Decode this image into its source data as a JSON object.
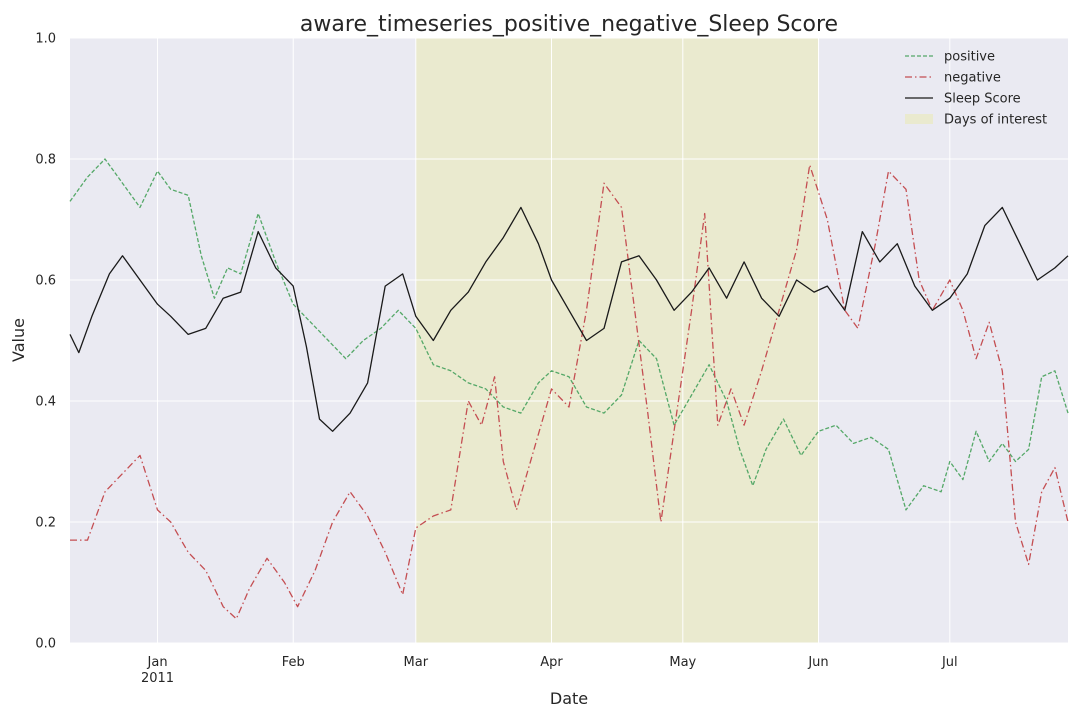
{
  "chart_data": {
    "type": "line",
    "title": "aware_timeseries_positive_negative_Sleep Score",
    "xlabel": "Date",
    "ylabel": "Value",
    "xlim": [
      "2010-12-12",
      "2011-07-28"
    ],
    "ylim": [
      0,
      1
    ],
    "y_ticks": [
      "0.0",
      "0.2",
      "0.4",
      "0.6",
      "0.8",
      "1.0"
    ],
    "x_ticks": [
      {
        "date": "2011-01-01",
        "label": "Jan",
        "sublabel": "2011"
      },
      {
        "date": "2011-02-01",
        "label": "Feb",
        "sublabel": ""
      },
      {
        "date": "2011-03-01",
        "label": "Mar",
        "sublabel": ""
      },
      {
        "date": "2011-04-01",
        "label": "Apr",
        "sublabel": ""
      },
      {
        "date": "2011-05-01",
        "label": "May",
        "sublabel": ""
      },
      {
        "date": "2011-06-01",
        "label": "Jun",
        "sublabel": ""
      },
      {
        "date": "2011-07-01",
        "label": "Jul",
        "sublabel": ""
      }
    ],
    "grid": true,
    "background_color": "#eaeaf2",
    "legend_position": "top-right",
    "shaded_regions": [
      {
        "name": "Days of interest",
        "start": "2011-03-01",
        "end": "2011-06-01",
        "color": "#eaeacf"
      }
    ],
    "series": [
      {
        "name": "positive",
        "color": "#55a868",
        "style": "dashed",
        "points": [
          [
            "2010-12-12",
            0.73
          ],
          [
            "2010-12-16",
            0.77
          ],
          [
            "2010-12-20",
            0.8
          ],
          [
            "2010-12-24",
            0.76
          ],
          [
            "2010-12-28",
            0.72
          ],
          [
            "2011-01-01",
            0.78
          ],
          [
            "2011-01-04",
            0.75
          ],
          [
            "2011-01-08",
            0.74
          ],
          [
            "2011-01-11",
            0.64
          ],
          [
            "2011-01-14",
            0.57
          ],
          [
            "2011-01-17",
            0.62
          ],
          [
            "2011-01-20",
            0.61
          ],
          [
            "2011-01-24",
            0.71
          ],
          [
            "2011-01-28",
            0.63
          ],
          [
            "2011-02-01",
            0.56
          ],
          [
            "2011-02-05",
            0.53
          ],
          [
            "2011-02-09",
            0.5
          ],
          [
            "2011-02-13",
            0.47
          ],
          [
            "2011-02-17",
            0.5
          ],
          [
            "2011-02-21",
            0.52
          ],
          [
            "2011-02-25",
            0.55
          ],
          [
            "2011-03-01",
            0.52
          ],
          [
            "2011-03-05",
            0.46
          ],
          [
            "2011-03-09",
            0.45
          ],
          [
            "2011-03-13",
            0.43
          ],
          [
            "2011-03-17",
            0.42
          ],
          [
            "2011-03-21",
            0.39
          ],
          [
            "2011-03-25",
            0.38
          ],
          [
            "2011-03-29",
            0.43
          ],
          [
            "2011-04-01",
            0.45
          ],
          [
            "2011-04-05",
            0.44
          ],
          [
            "2011-04-09",
            0.39
          ],
          [
            "2011-04-13",
            0.38
          ],
          [
            "2011-04-17",
            0.41
          ],
          [
            "2011-04-21",
            0.5
          ],
          [
            "2011-04-25",
            0.47
          ],
          [
            "2011-04-29",
            0.36
          ],
          [
            "2011-05-03",
            0.41
          ],
          [
            "2011-05-07",
            0.46
          ],
          [
            "2011-05-11",
            0.4
          ],
          [
            "2011-05-14",
            0.32
          ],
          [
            "2011-05-17",
            0.26
          ],
          [
            "2011-05-20",
            0.32
          ],
          [
            "2011-05-24",
            0.37
          ],
          [
            "2011-05-28",
            0.31
          ],
          [
            "2011-06-01",
            0.35
          ],
          [
            "2011-06-05",
            0.36
          ],
          [
            "2011-06-09",
            0.33
          ],
          [
            "2011-06-13",
            0.34
          ],
          [
            "2011-06-17",
            0.32
          ],
          [
            "2011-06-21",
            0.22
          ],
          [
            "2011-06-25",
            0.26
          ],
          [
            "2011-06-29",
            0.25
          ],
          [
            "2011-07-01",
            0.3
          ],
          [
            "2011-07-04",
            0.27
          ],
          [
            "2011-07-07",
            0.35
          ],
          [
            "2011-07-10",
            0.3
          ],
          [
            "2011-07-13",
            0.33
          ],
          [
            "2011-07-16",
            0.3
          ],
          [
            "2011-07-19",
            0.32
          ],
          [
            "2011-07-22",
            0.44
          ],
          [
            "2011-07-25",
            0.45
          ],
          [
            "2011-07-28",
            0.38
          ]
        ]
      },
      {
        "name": "negative",
        "color": "#c44e52",
        "style": "dashdot",
        "points": [
          [
            "2010-12-12",
            0.17
          ],
          [
            "2010-12-16",
            0.17
          ],
          [
            "2010-12-20",
            0.25
          ],
          [
            "2010-12-24",
            0.28
          ],
          [
            "2010-12-28",
            0.31
          ],
          [
            "2011-01-01",
            0.22
          ],
          [
            "2011-01-04",
            0.2
          ],
          [
            "2011-01-08",
            0.15
          ],
          [
            "2011-01-12",
            0.12
          ],
          [
            "2011-01-16",
            0.06
          ],
          [
            "2011-01-19",
            0.04
          ],
          [
            "2011-01-22",
            0.09
          ],
          [
            "2011-01-26",
            0.14
          ],
          [
            "2011-01-30",
            0.1
          ],
          [
            "2011-02-02",
            0.06
          ],
          [
            "2011-02-06",
            0.12
          ],
          [
            "2011-02-10",
            0.2
          ],
          [
            "2011-02-14",
            0.25
          ],
          [
            "2011-02-18",
            0.21
          ],
          [
            "2011-02-22",
            0.15
          ],
          [
            "2011-02-26",
            0.08
          ],
          [
            "2011-03-01",
            0.19
          ],
          [
            "2011-03-05",
            0.21
          ],
          [
            "2011-03-09",
            0.22
          ],
          [
            "2011-03-13",
            0.4
          ],
          [
            "2011-03-16",
            0.36
          ],
          [
            "2011-03-19",
            0.44
          ],
          [
            "2011-03-21",
            0.3
          ],
          [
            "2011-03-24",
            0.22
          ],
          [
            "2011-03-28",
            0.32
          ],
          [
            "2011-04-01",
            0.42
          ],
          [
            "2011-04-05",
            0.39
          ],
          [
            "2011-04-09",
            0.55
          ],
          [
            "2011-04-13",
            0.76
          ],
          [
            "2011-04-17",
            0.72
          ],
          [
            "2011-04-20",
            0.55
          ],
          [
            "2011-04-23",
            0.38
          ],
          [
            "2011-04-26",
            0.2
          ],
          [
            "2011-04-30",
            0.4
          ],
          [
            "2011-05-03",
            0.55
          ],
          [
            "2011-05-06",
            0.71
          ],
          [
            "2011-05-09",
            0.36
          ],
          [
            "2011-05-12",
            0.42
          ],
          [
            "2011-05-15",
            0.36
          ],
          [
            "2011-05-19",
            0.45
          ],
          [
            "2011-05-23",
            0.55
          ],
          [
            "2011-05-27",
            0.65
          ],
          [
            "2011-05-30",
            0.79
          ],
          [
            "2011-06-03",
            0.7
          ],
          [
            "2011-06-07",
            0.55
          ],
          [
            "2011-06-10",
            0.52
          ],
          [
            "2011-06-14",
            0.66
          ],
          [
            "2011-06-17",
            0.78
          ],
          [
            "2011-06-21",
            0.75
          ],
          [
            "2011-06-24",
            0.6
          ],
          [
            "2011-06-27",
            0.55
          ],
          [
            "2011-07-01",
            0.6
          ],
          [
            "2011-07-04",
            0.55
          ],
          [
            "2011-07-07",
            0.47
          ],
          [
            "2011-07-10",
            0.53
          ],
          [
            "2011-07-13",
            0.45
          ],
          [
            "2011-07-16",
            0.2
          ],
          [
            "2011-07-19",
            0.13
          ],
          [
            "2011-07-22",
            0.25
          ],
          [
            "2011-07-25",
            0.29
          ],
          [
            "2011-07-28",
            0.2
          ]
        ]
      },
      {
        "name": "Sleep Score",
        "color": "#1a1a1a",
        "style": "solid",
        "points": [
          [
            "2010-12-12",
            0.51
          ],
          [
            "2010-12-14",
            0.48
          ],
          [
            "2010-12-17",
            0.54
          ],
          [
            "2010-12-21",
            0.61
          ],
          [
            "2010-12-24",
            0.64
          ],
          [
            "2010-12-28",
            0.6
          ],
          [
            "2011-01-01",
            0.56
          ],
          [
            "2011-01-04",
            0.54
          ],
          [
            "2011-01-08",
            0.51
          ],
          [
            "2011-01-12",
            0.52
          ],
          [
            "2011-01-16",
            0.57
          ],
          [
            "2011-01-20",
            0.58
          ],
          [
            "2011-01-24",
            0.68
          ],
          [
            "2011-01-28",
            0.62
          ],
          [
            "2011-02-01",
            0.59
          ],
          [
            "2011-02-04",
            0.49
          ],
          [
            "2011-02-07",
            0.37
          ],
          [
            "2011-02-10",
            0.35
          ],
          [
            "2011-02-14",
            0.38
          ],
          [
            "2011-02-18",
            0.43
          ],
          [
            "2011-02-22",
            0.59
          ],
          [
            "2011-02-26",
            0.61
          ],
          [
            "2011-03-01",
            0.54
          ],
          [
            "2011-03-05",
            0.5
          ],
          [
            "2011-03-09",
            0.55
          ],
          [
            "2011-03-13",
            0.58
          ],
          [
            "2011-03-17",
            0.63
          ],
          [
            "2011-03-21",
            0.67
          ],
          [
            "2011-03-25",
            0.72
          ],
          [
            "2011-03-29",
            0.66
          ],
          [
            "2011-04-01",
            0.6
          ],
          [
            "2011-04-05",
            0.55
          ],
          [
            "2011-04-09",
            0.5
          ],
          [
            "2011-04-13",
            0.52
          ],
          [
            "2011-04-17",
            0.63
          ],
          [
            "2011-04-21",
            0.64
          ],
          [
            "2011-04-25",
            0.6
          ],
          [
            "2011-04-29",
            0.55
          ],
          [
            "2011-05-03",
            0.58
          ],
          [
            "2011-05-07",
            0.62
          ],
          [
            "2011-05-11",
            0.57
          ],
          [
            "2011-05-15",
            0.63
          ],
          [
            "2011-05-19",
            0.57
          ],
          [
            "2011-05-23",
            0.54
          ],
          [
            "2011-05-27",
            0.6
          ],
          [
            "2011-05-31",
            0.58
          ],
          [
            "2011-06-03",
            0.59
          ],
          [
            "2011-06-07",
            0.55
          ],
          [
            "2011-06-11",
            0.68
          ],
          [
            "2011-06-15",
            0.63
          ],
          [
            "2011-06-19",
            0.66
          ],
          [
            "2011-06-23",
            0.59
          ],
          [
            "2011-06-27",
            0.55
          ],
          [
            "2011-07-01",
            0.57
          ],
          [
            "2011-07-05",
            0.61
          ],
          [
            "2011-07-09",
            0.69
          ],
          [
            "2011-07-13",
            0.72
          ],
          [
            "2011-07-17",
            0.66
          ],
          [
            "2011-07-21",
            0.6
          ],
          [
            "2011-07-25",
            0.62
          ],
          [
            "2011-07-28",
            0.64
          ]
        ]
      }
    ]
  }
}
